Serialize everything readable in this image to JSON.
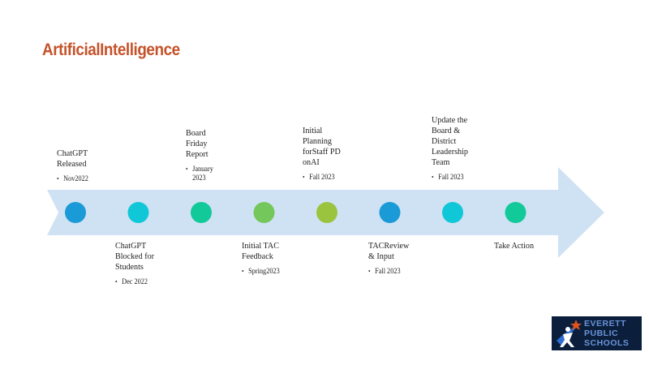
{
  "title": "ArtificialIntelligence",
  "colors": {
    "title": "#c5522a",
    "arrow": "#cfe2f3",
    "milestones": [
      "#1a9ad6",
      "#10c7d8",
      "#12c99a",
      "#74c75a",
      "#9bc43e",
      "#1a9ad6",
      "#10c7d8",
      "#12c99a"
    ]
  },
  "milestones": [
    {
      "title": "ChatGPT\nReleased",
      "sub": "Nov2022",
      "position": "above"
    },
    {
      "title": "ChatGPT\nBlocked    for\nStudents",
      "sub": "Dec  2022",
      "position": "below"
    },
    {
      "title": "Board\nFriday\nReport",
      "sub": "January\n2023",
      "position": "above"
    },
    {
      "title": "Initial   TAC\nFeedback",
      "sub": "Spring2023",
      "position": "below"
    },
    {
      "title": "Initial\nPlanning\nforStaff    PD\nonAI",
      "sub": "Fall  2023",
      "position": "above"
    },
    {
      "title": "TACReview\n& Input",
      "sub": "Fall  2023",
      "position": "below"
    },
    {
      "title": "Update     the\nBoard    &\nDistrict\nLeadership\nTeam",
      "sub": "Fall  2023",
      "position": "above"
    },
    {
      "title": "Take   Action",
      "sub": "",
      "position": "below"
    }
  ],
  "logo": {
    "line1": "EVERETT",
    "line2": "PUBLIC",
    "line3": "SCHOOLS",
    "icon": "star-person-icon"
  }
}
